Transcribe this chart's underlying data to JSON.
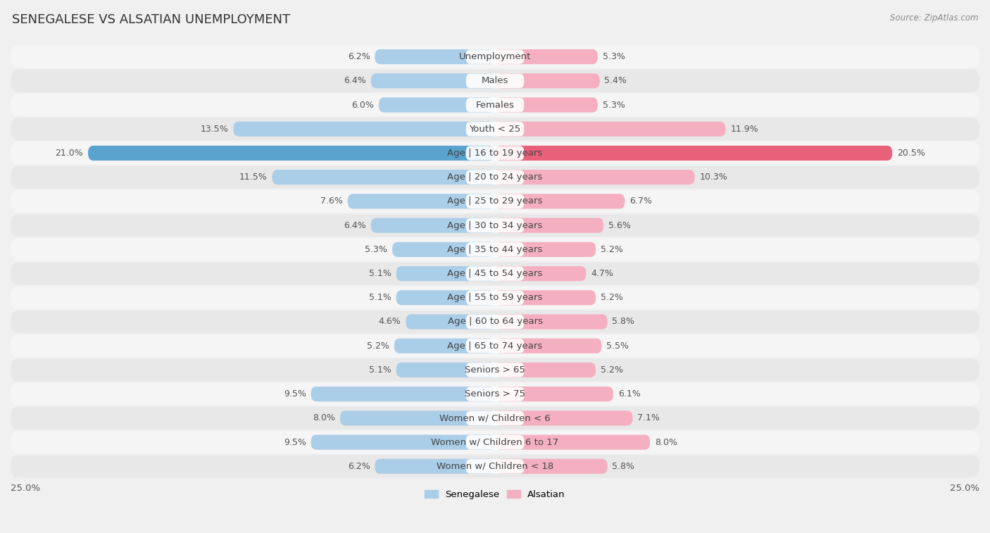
{
  "title": "SENEGALESE VS ALSATIAN UNEMPLOYMENT",
  "source": "Source: ZipAtlas.com",
  "categories": [
    "Unemployment",
    "Males",
    "Females",
    "Youth < 25",
    "Age | 16 to 19 years",
    "Age | 20 to 24 years",
    "Age | 25 to 29 years",
    "Age | 30 to 34 years",
    "Age | 35 to 44 years",
    "Age | 45 to 54 years",
    "Age | 55 to 59 years",
    "Age | 60 to 64 years",
    "Age | 65 to 74 years",
    "Seniors > 65",
    "Seniors > 75",
    "Women w/ Children < 6",
    "Women w/ Children 6 to 17",
    "Women w/ Children < 18"
  ],
  "senegalese": [
    6.2,
    6.4,
    6.0,
    13.5,
    21.0,
    11.5,
    7.6,
    6.4,
    5.3,
    5.1,
    5.1,
    4.6,
    5.2,
    5.1,
    9.5,
    8.0,
    9.5,
    6.2
  ],
  "alsatian": [
    5.3,
    5.4,
    5.3,
    11.9,
    20.5,
    10.3,
    6.7,
    5.6,
    5.2,
    4.7,
    5.2,
    5.8,
    5.5,
    5.2,
    6.1,
    7.1,
    8.0,
    5.8
  ],
  "senegalese_color": "#aacde8",
  "alsatian_color": "#f4afc0",
  "highlight_senegalese_color": "#5ba3cf",
  "highlight_alsatian_color": "#e8607a",
  "row_colors": [
    "#f5f5f5",
    "#e8e8e8"
  ],
  "background_color": "#f0f0f0",
  "axis_max": 25.0,
  "bar_height": 0.62,
  "title_fontsize": 13,
  "label_fontsize": 9.5,
  "value_fontsize": 9.0,
  "legend_fontsize": 9.5
}
